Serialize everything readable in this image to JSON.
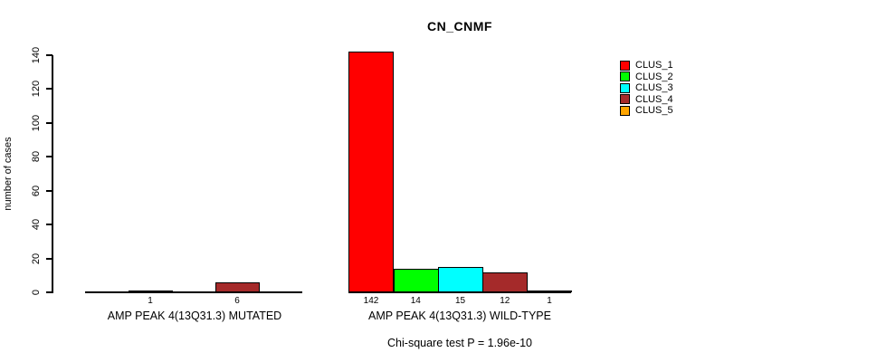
{
  "title": "CN_CNMF",
  "annotation": "Chi-square test P = 1.96e-10",
  "y_axis": {
    "label": "number of cases"
  },
  "legend": {
    "items": [
      {
        "label": "CLUS_1",
        "color": "#FF0000"
      },
      {
        "label": "CLUS_2",
        "color": "#00FF00"
      },
      {
        "label": "CLUS_3",
        "color": "#00FFFF"
      },
      {
        "label": "CLUS_4",
        "color": "#A52A2A"
      },
      {
        "label": "CLUS_5",
        "color": "#FFA500"
      }
    ]
  },
  "chart_data": {
    "type": "bar",
    "title": "CN_CNMF",
    "xlabel": "",
    "ylabel": "number of cases",
    "ylim": [
      0,
      140
    ],
    "yticks": [
      0,
      20,
      40,
      60,
      80,
      100,
      120,
      140
    ],
    "grid": false,
    "legend_position": "top-right",
    "clusters": [
      "CLUS_1",
      "CLUS_2",
      "CLUS_3",
      "CLUS_4",
      "CLUS_5"
    ],
    "cluster_colors": [
      "#FF0000",
      "#00FF00",
      "#00FFFF",
      "#A52A2A",
      "#FFA500"
    ],
    "groups": [
      {
        "label": "AMP PEAK 4(13Q31.3) MUTATED",
        "values": [
          0,
          1,
          0,
          6,
          0
        ],
        "bar_labels": [
          "",
          "1",
          "",
          "6",
          ""
        ]
      },
      {
        "label": "AMP PEAK 4(13Q31.3) WILD-TYPE",
        "values": [
          142,
          14,
          15,
          12,
          1
        ],
        "bar_labels": [
          "142",
          "14",
          "15",
          "12",
          "1"
        ]
      }
    ],
    "annotation": "Chi-square test P = 1.96e-10"
  }
}
